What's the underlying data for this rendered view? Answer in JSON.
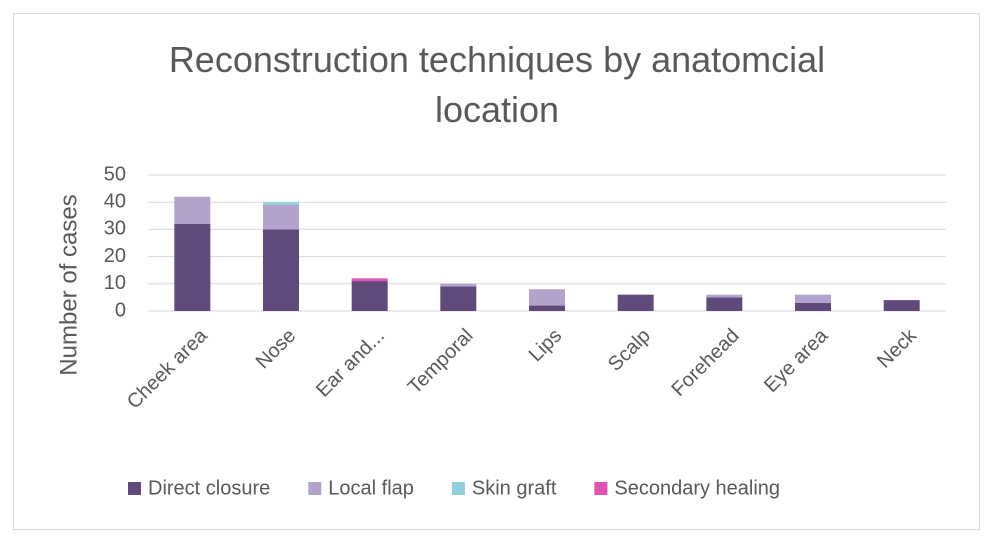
{
  "chart_data": {
    "type": "stacked_bar",
    "title": "Reconstruction techniques by anatomcial location",
    "y_label": "Number of cases",
    "categories": [
      "Cheek area",
      "Nose",
      "Ear and...",
      "Temporal",
      "Lips",
      "Scalp",
      "Forehead",
      "Eye area",
      "Neck"
    ],
    "series": [
      {
        "name": "Direct closure",
        "color": "#5f4a7b",
        "values": [
          32,
          30,
          11,
          9,
          2,
          6,
          5,
          3,
          4
        ]
      },
      {
        "name": "Local flap",
        "color": "#b3a2cc",
        "values": [
          10,
          9,
          0,
          1,
          6,
          0,
          1,
          3,
          0
        ]
      },
      {
        "name": "Skin graft",
        "color": "#92cddc",
        "values": [
          0,
          1,
          0,
          0,
          0,
          0,
          0,
          0,
          0
        ]
      },
      {
        "name": "Secondary healing",
        "color": "#e052b4",
        "values": [
          0,
          0,
          1,
          0,
          0,
          0,
          0,
          0,
          0
        ]
      }
    ],
    "ylim": [
      0,
      50
    ],
    "yticks": [
      0,
      10,
      20,
      30,
      40,
      50
    ],
    "grid": true,
    "legend": "bottom"
  }
}
